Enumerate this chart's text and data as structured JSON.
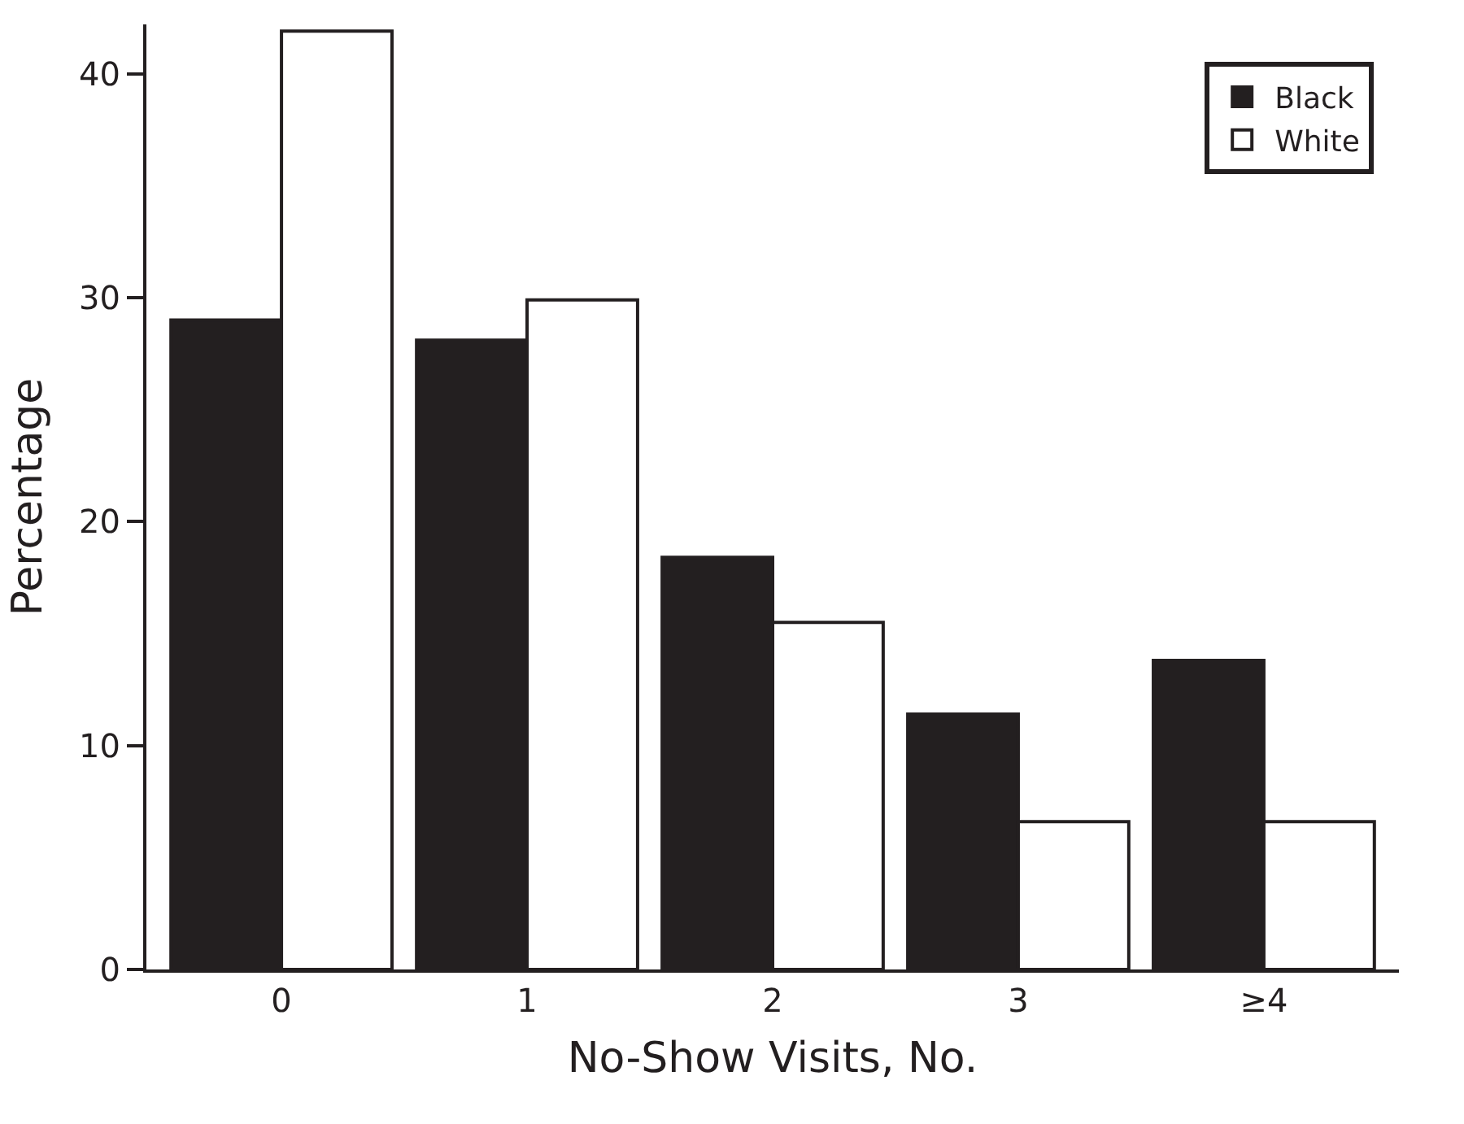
{
  "chart_data": {
    "type": "bar",
    "xlabel": "No-Show Visits, No.",
    "ylabel": "Percentage",
    "categories": [
      "0",
      "1",
      "2",
      "3",
      "≥4"
    ],
    "series": [
      {
        "name": "Black",
        "color": "#231f20",
        "values": [
          29.0,
          28.1,
          18.4,
          11.4,
          13.8
        ]
      },
      {
        "name": "White",
        "color": "#ffffff",
        "values": [
          41.9,
          29.9,
          15.5,
          6.6,
          6.6
        ]
      }
    ],
    "ylim": [
      0,
      42.2
    ],
    "yticks": [
      0,
      10,
      20,
      30,
      40
    ],
    "legend": "top right"
  }
}
